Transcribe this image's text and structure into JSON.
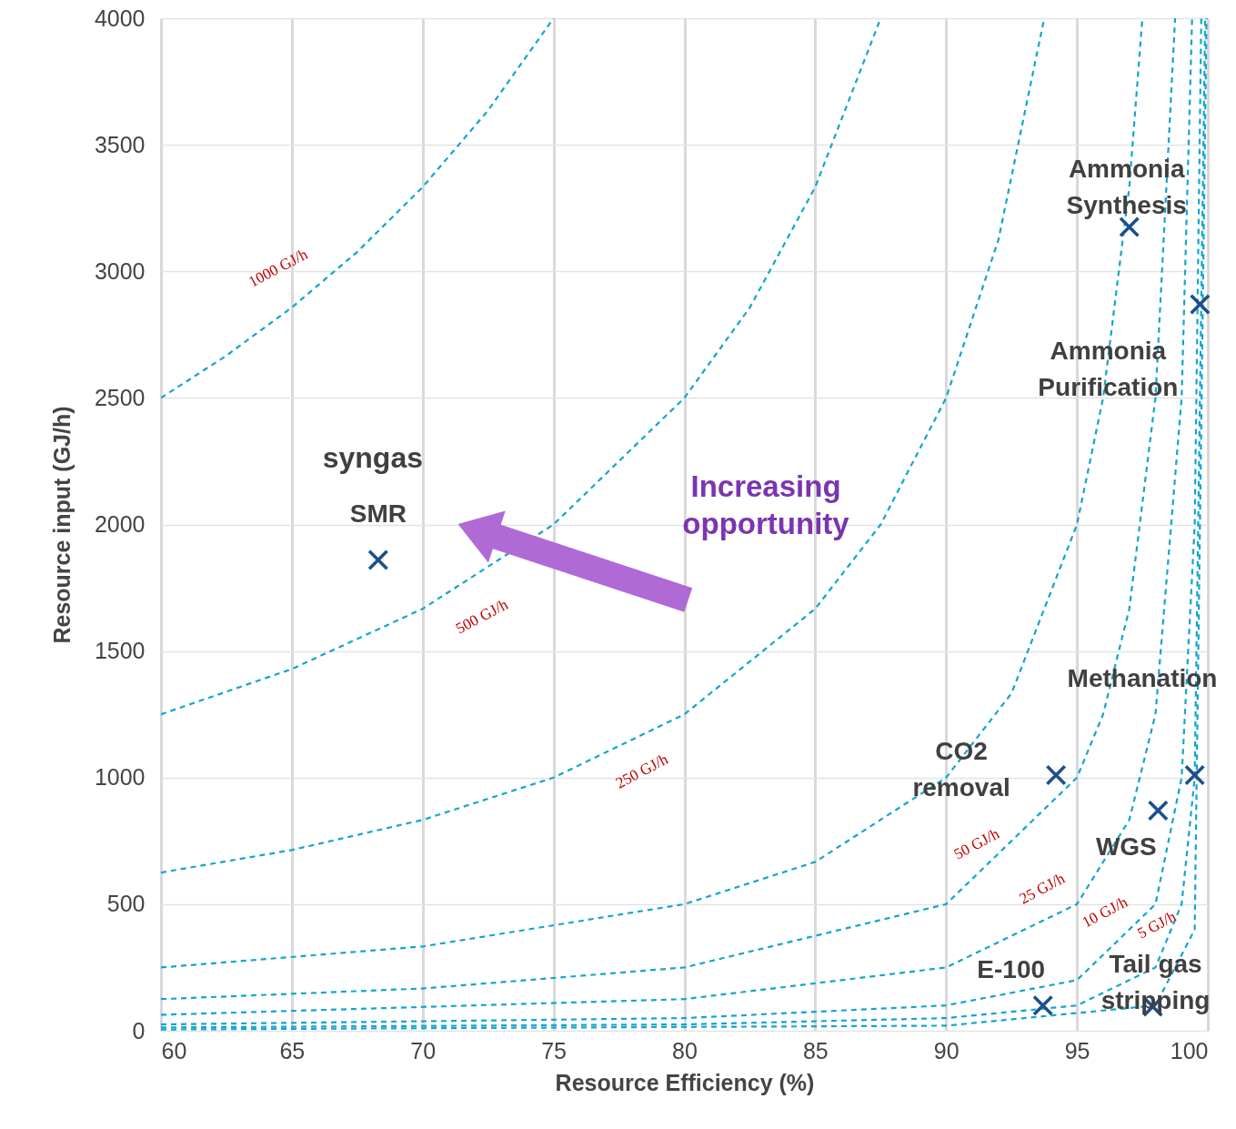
{
  "chart_data": {
    "type": "scatter",
    "xlabel": "Resource Efficiency (%)",
    "ylabel": "Resource input (GJ/h)",
    "xlim": [
      60,
      100
    ],
    "xticks": [
      60,
      65,
      70,
      75,
      80,
      85,
      90,
      95,
      100
    ],
    "ylim": [
      0,
      4000
    ],
    "yticks": [
      0,
      500,
      1000,
      1500,
      2000,
      2500,
      3000,
      3500,
      4000
    ],
    "grid": true,
    "series": [
      {
        "type": "line",
        "name": "1000 GJ/h",
        "line_style": "dashed",
        "color": "#12a5cf",
        "x": [
          60,
          62.5,
          65,
          67.5,
          70,
          72.5,
          75
        ],
        "values": [
          2500,
          2667,
          2857,
          3077,
          3333,
          3636,
          4000
        ]
      },
      {
        "type": "line",
        "name": "500 GJ/h",
        "line_style": "dashed",
        "color": "#12a5cf",
        "x": [
          60,
          65,
          70,
          75,
          80,
          82.5,
          85,
          87.5
        ],
        "values": [
          1250,
          1429,
          1667,
          2000,
          2500,
          2857,
          3333,
          4000
        ]
      },
      {
        "type": "line",
        "name": "250 GJ/h",
        "line_style": "dashed",
        "color": "#12a5cf",
        "x": [
          60,
          65,
          70,
          75,
          80,
          85,
          87.5,
          90,
          92,
          93.75
        ],
        "values": [
          625,
          714,
          833,
          1000,
          1250,
          1667,
          2000,
          2500,
          3125,
          4000
        ]
      },
      {
        "type": "line",
        "line_style": "dashed",
        "color": "#12a5cf",
        "x": [
          60,
          70,
          80,
          85,
          90,
          92.5,
          95,
          96,
          97,
          97.5
        ],
        "values": [
          250,
          333,
          500,
          667,
          1000,
          1333,
          2000,
          2500,
          3333,
          4000
        ]
      },
      {
        "type": "line",
        "name": "50 GJ/h",
        "line_style": "dashed",
        "color": "#12a5cf",
        "x": [
          60,
          70,
          80,
          90,
          95,
          96,
          97,
          98,
          98.75
        ],
        "values": [
          125,
          167,
          250,
          500,
          1000,
          1250,
          1667,
          2500,
          4000
        ]
      },
      {
        "type": "line",
        "name": "25 GJ/h",
        "line_style": "dashed",
        "color": "#12a5cf",
        "x": [
          60,
          80,
          90,
          95,
          97,
          98,
          99,
          99.4
        ],
        "values": [
          63,
          125,
          250,
          500,
          833,
          1250,
          2500,
          4000
        ]
      },
      {
        "type": "line",
        "name": "10 GJ/h",
        "line_style": "dashed",
        "color": "#12a5cf",
        "x": [
          60,
          80,
          90,
          95,
          98,
          99,
          99.5,
          99.75
        ],
        "values": [
          25,
          50,
          100,
          200,
          500,
          1000,
          2000,
          4000
        ]
      },
      {
        "type": "line",
        "name": "5 GJ/h",
        "line_style": "dashed",
        "color": "#12a5cf",
        "x": [
          60,
          80,
          90,
          95,
          98,
          99,
          99.5,
          99.9
        ],
        "values": [
          13,
          25,
          50,
          100,
          250,
          500,
          1000,
          4000
        ]
      },
      {
        "type": "line",
        "line_style": "dashed",
        "color": "#12a5cf",
        "x": [
          60,
          90,
          98,
          99.5,
          99.95
        ],
        "values": [
          5,
          20,
          100,
          400,
          4000
        ]
      },
      {
        "marker": "cross",
        "color": "#1a4f8a",
        "x": [
          68.3,
          97,
          99.7,
          94.2,
          99.5,
          98.1,
          93.7,
          97.9
        ],
        "values": [
          1860,
          3175,
          2870,
          1010,
          1010,
          870,
          100,
          95
        ]
      }
    ],
    "annotations": [
      {
        "text": "syngas",
        "x": 68.3,
        "y": 1860
      },
      {
        "text": "SMR",
        "x": 68.3,
        "y": 1860
      },
      {
        "text": "Ammonia\nSynthesis",
        "x": 97,
        "y": 3175
      },
      {
        "text": "Ammonia\nPurification",
        "x": 99.7,
        "y": 2870
      },
      "Methanation",
      {
        "text": "CO2\nremoval",
        "x": 94.2,
        "y": 1010
      },
      {
        "text": "WGS",
        "x": 98.1,
        "y": 870
      },
      {
        "text": "E-100",
        "x": 93.7,
        "y": 100
      },
      {
        "text": "Tail gas\nstripping",
        "x": 97.9,
        "y": 95
      },
      "Increasing\nopportunity"
    ]
  }
}
